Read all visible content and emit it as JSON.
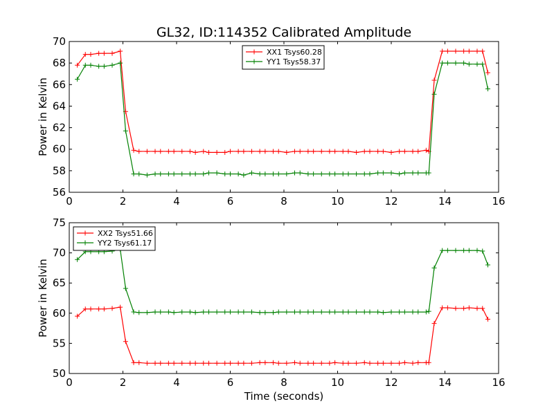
{
  "title": "GL32, ID:114352 Calibrated Amplitude",
  "xlabel": "Time (seconds)",
  "chart_data": [
    {
      "type": "line",
      "title": "GL32, ID:114352 Calibrated Amplitude",
      "xlabel": "",
      "ylabel": "Power in Kelvin",
      "xlim": [
        0,
        16
      ],
      "ylim": [
        56,
        70
      ],
      "xticks": [
        0,
        2,
        4,
        6,
        8,
        10,
        12,
        14,
        16
      ],
      "yticks": [
        56,
        58,
        60,
        62,
        64,
        66,
        68,
        70
      ],
      "grid": false,
      "legend_position": "top-center",
      "x": [
        0.3,
        0.6,
        0.8,
        1.1,
        1.3,
        1.6,
        1.9,
        2.1,
        2.4,
        2.6,
        2.9,
        3.2,
        3.4,
        3.7,
        3.9,
        4.2,
        4.5,
        4.7,
        5.0,
        5.2,
        5.5,
        5.8,
        6.0,
        6.3,
        6.5,
        6.8,
        7.1,
        7.3,
        7.6,
        7.8,
        8.1,
        8.4,
        8.6,
        8.9,
        9.1,
        9.4,
        9.7,
        9.9,
        10.2,
        10.4,
        10.7,
        11.0,
        11.2,
        11.5,
        11.7,
        12.0,
        12.3,
        12.5,
        12.8,
        13.0,
        13.3,
        13.4,
        13.6,
        13.9,
        14.1,
        14.4,
        14.7,
        14.9,
        15.2,
        15.4,
        15.6
      ],
      "series": [
        {
          "name": "XX1 Tsys60.28",
          "color": "#ff0000",
          "values": [
            67.8,
            68.8,
            68.8,
            68.9,
            68.9,
            68.9,
            69.1,
            63.5,
            59.9,
            59.8,
            59.8,
            59.8,
            59.8,
            59.8,
            59.8,
            59.8,
            59.8,
            59.7,
            59.8,
            59.7,
            59.7,
            59.7,
            59.8,
            59.8,
            59.8,
            59.8,
            59.8,
            59.8,
            59.8,
            59.8,
            59.7,
            59.8,
            59.8,
            59.8,
            59.8,
            59.8,
            59.8,
            59.8,
            59.8,
            59.8,
            59.7,
            59.8,
            59.8,
            59.8,
            59.8,
            59.7,
            59.8,
            59.8,
            59.8,
            59.8,
            59.9,
            59.8,
            66.4,
            69.1,
            69.1,
            69.1,
            69.1,
            69.1,
            69.1,
            69.1,
            67.1
          ]
        },
        {
          "name": "YY1 Tsys58.37",
          "color": "#008000",
          "values": [
            66.5,
            67.8,
            67.8,
            67.7,
            67.7,
            67.8,
            68.0,
            61.7,
            57.7,
            57.7,
            57.6,
            57.7,
            57.7,
            57.7,
            57.7,
            57.7,
            57.7,
            57.7,
            57.7,
            57.8,
            57.8,
            57.7,
            57.7,
            57.7,
            57.6,
            57.8,
            57.7,
            57.7,
            57.7,
            57.7,
            57.7,
            57.8,
            57.8,
            57.7,
            57.7,
            57.7,
            57.7,
            57.7,
            57.7,
            57.7,
            57.7,
            57.7,
            57.7,
            57.8,
            57.8,
            57.8,
            57.7,
            57.8,
            57.8,
            57.8,
            57.8,
            57.8,
            65.1,
            68.0,
            68.0,
            68.0,
            68.0,
            67.9,
            67.9,
            67.9,
            65.6
          ]
        }
      ]
    },
    {
      "type": "line",
      "title": "",
      "xlabel": "Time (seconds)",
      "ylabel": "Power in Kelvin",
      "xlim": [
        0,
        16
      ],
      "ylim": [
        50,
        75
      ],
      "xticks": [
        0,
        2,
        4,
        6,
        8,
        10,
        12,
        14,
        16
      ],
      "yticks": [
        50,
        55,
        60,
        65,
        70,
        75
      ],
      "grid": false,
      "legend_position": "top-left",
      "x": [
        0.3,
        0.6,
        0.8,
        1.1,
        1.3,
        1.6,
        1.9,
        2.1,
        2.4,
        2.6,
        2.9,
        3.2,
        3.4,
        3.7,
        3.9,
        4.2,
        4.5,
        4.7,
        5.0,
        5.2,
        5.5,
        5.8,
        6.0,
        6.3,
        6.5,
        6.8,
        7.1,
        7.3,
        7.6,
        7.8,
        8.1,
        8.4,
        8.6,
        8.9,
        9.1,
        9.4,
        9.7,
        9.9,
        10.2,
        10.4,
        10.7,
        11.0,
        11.2,
        11.5,
        11.7,
        12.0,
        12.3,
        12.5,
        12.8,
        13.0,
        13.3,
        13.4,
        13.6,
        13.9,
        14.1,
        14.4,
        14.7,
        14.9,
        15.2,
        15.4,
        15.6
      ],
      "series": [
        {
          "name": "XX2 Tsys51.66",
          "color": "#ff0000",
          "values": [
            59.5,
            60.7,
            60.7,
            60.7,
            60.7,
            60.8,
            61.0,
            55.3,
            51.8,
            51.8,
            51.7,
            51.7,
            51.7,
            51.7,
            51.7,
            51.7,
            51.7,
            51.7,
            51.7,
            51.7,
            51.7,
            51.7,
            51.7,
            51.7,
            51.7,
            51.7,
            51.8,
            51.8,
            51.8,
            51.7,
            51.7,
            51.8,
            51.7,
            51.7,
            51.7,
            51.7,
            51.7,
            51.8,
            51.7,
            51.7,
            51.7,
            51.8,
            51.7,
            51.7,
            51.7,
            51.7,
            51.7,
            51.8,
            51.7,
            51.8,
            51.8,
            51.8,
            58.3,
            60.9,
            60.9,
            60.8,
            60.8,
            60.9,
            60.8,
            60.8,
            59.0
          ]
        },
        {
          "name": "YY2 Tsys61.17",
          "color": "#008000",
          "values": [
            68.9,
            70.2,
            70.2,
            70.2,
            70.2,
            70.3,
            70.6,
            64.1,
            60.2,
            60.1,
            60.1,
            60.2,
            60.2,
            60.2,
            60.1,
            60.2,
            60.2,
            60.1,
            60.2,
            60.2,
            60.2,
            60.2,
            60.2,
            60.2,
            60.2,
            60.2,
            60.1,
            60.1,
            60.1,
            60.2,
            60.2,
            60.2,
            60.2,
            60.2,
            60.2,
            60.2,
            60.2,
            60.2,
            60.2,
            60.2,
            60.2,
            60.2,
            60.2,
            60.2,
            60.1,
            60.2,
            60.2,
            60.2,
            60.2,
            60.2,
            60.2,
            60.3,
            67.5,
            70.4,
            70.4,
            70.4,
            70.4,
            70.4,
            70.4,
            70.3,
            68.0
          ]
        }
      ]
    }
  ]
}
